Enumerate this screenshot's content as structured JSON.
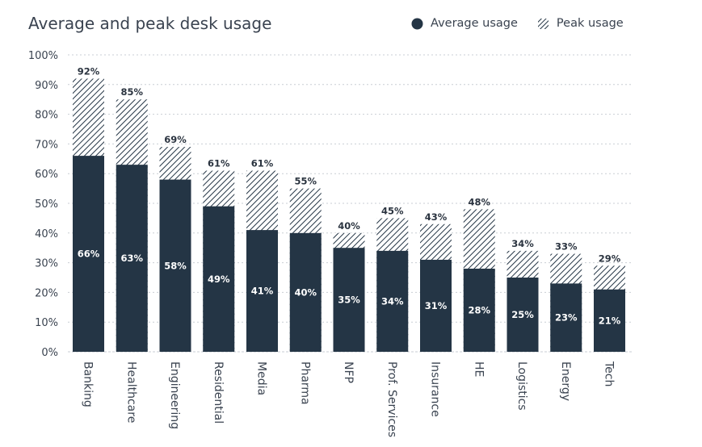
{
  "chart_data": {
    "type": "bar",
    "title": "Average and peak desk usage",
    "categories": [
      "Banking",
      "Healthcare",
      "Engineering",
      "Residential",
      "Media",
      "Pharma",
      "NFP",
      "Prof. Services",
      "Insurance",
      "HE",
      "Logistics",
      "Energy",
      "Tech"
    ],
    "series": [
      {
        "name": "Average usage",
        "values": [
          66,
          63,
          58,
          49,
          41,
          40,
          35,
          34,
          31,
          28,
          25,
          23,
          21
        ],
        "labels": [
          "66%",
          "63%",
          "58%",
          "49%",
          "41%",
          "40%",
          "35%",
          "34%",
          "31%",
          "28%",
          "25%",
          "23%",
          "21%"
        ]
      },
      {
        "name": "Peak usage",
        "values": [
          92,
          85,
          69,
          61,
          61,
          55,
          40,
          45,
          43,
          48,
          34,
          33,
          29
        ],
        "labels": [
          "92%",
          "85%",
          "69%",
          "61%",
          "61%",
          "55%",
          "40%",
          "45%",
          "43%",
          "48%",
          "34%",
          "33%",
          "29%"
        ]
      }
    ],
    "ylim": [
      0,
      100
    ],
    "yticks": [
      0,
      10,
      20,
      30,
      40,
      50,
      60,
      70,
      80,
      90,
      100
    ],
    "ytick_labels": [
      "0%",
      "10%",
      "20%",
      "30%",
      "40%",
      "50%",
      "60%",
      "70%",
      "80%",
      "90%",
      "100%"
    ],
    "xlabel": "",
    "ylabel": "",
    "grid": true,
    "legend": "top-right",
    "colors": {
      "average": "#243545",
      "peak_hatch": "#243545",
      "grid": "#c9ced4",
      "text": "#3a4350"
    }
  }
}
